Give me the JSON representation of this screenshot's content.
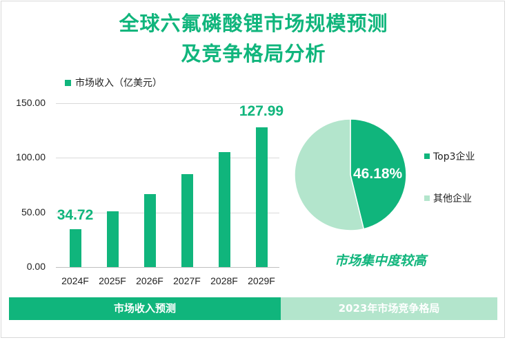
{
  "header": {
    "title_line1": "全球六氟磷酸锂市场规模预测",
    "title_line2": "及竞争格局分析"
  },
  "chart_data": [
    {
      "type": "bar",
      "legend": "市场收入（亿美元）",
      "categories": [
        "2024F",
        "2025F",
        "2026F",
        "2027F",
        "2028F",
        "2029F"
      ],
      "values": [
        34.72,
        51,
        67,
        85,
        105,
        127.99
      ],
      "labeled_values": [
        "34.72",
        "",
        "",
        "",
        "",
        "127.99"
      ],
      "yticks": [
        "0.00",
        "50.00",
        "100.00",
        "150.00"
      ],
      "ylim": [
        0,
        150
      ],
      "color": "#10b57c"
    },
    {
      "type": "pie",
      "slices": [
        {
          "name": "Top3企业",
          "value": 46.18,
          "label": "46.18%",
          "color": "#10b57c"
        },
        {
          "name": "其他企业",
          "value": 53.82,
          "label": "",
          "color": "#b3e5cc"
        }
      ]
    }
  ],
  "caption": "市场集中度较高",
  "footer": {
    "left": "市场收入预测",
    "right": "2023年市场竞争格局"
  }
}
